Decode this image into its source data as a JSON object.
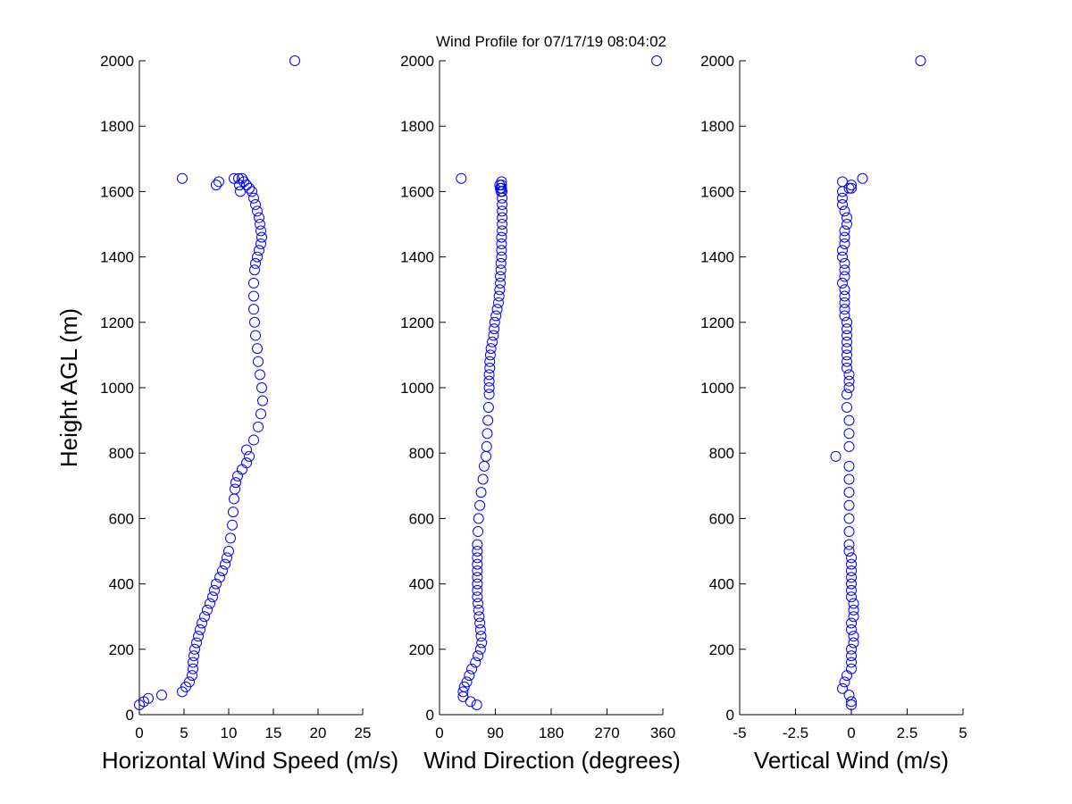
{
  "title": "Wind Profile for  07/17/19 08:04:02",
  "ylabel": "Height AGL (m)",
  "colors": {
    "marker": "#0000ff",
    "axis": "#000000",
    "background": "#ffffff"
  },
  "chart_data": [
    {
      "type": "scatter",
      "xlabel": "Horizontal Wind Speed (m/s)",
      "xlim": [
        0,
        25
      ],
      "xticks": [
        0,
        5,
        10,
        15,
        20,
        25
      ],
      "xtick_labels": [
        "0",
        "5",
        "10",
        "15",
        "20",
        "25"
      ],
      "ylim": [
        0,
        2000
      ],
      "yticks": [
        0,
        200,
        400,
        600,
        800,
        1000,
        1200,
        1400,
        1600,
        1800,
        2000
      ],
      "ytick_labels": [
        "0",
        "200",
        "400",
        "600",
        "800",
        "1000",
        "1200",
        "1400",
        "1600",
        "1800",
        "2000"
      ],
      "x": [
        0.0,
        0.5,
        1.0,
        2.5,
        4.8,
        5.2,
        5.6,
        5.9,
        6.0,
        6.0,
        6.1,
        6.2,
        6.4,
        6.6,
        6.8,
        7.0,
        7.3,
        7.6,
        7.9,
        8.2,
        8.4,
        8.6,
        9.0,
        9.3,
        9.6,
        9.8,
        10.0,
        10.2,
        10.4,
        10.5,
        10.6,
        10.7,
        10.8,
        11.0,
        11.5,
        12.0,
        12.3,
        12.0,
        12.8,
        13.3,
        13.6,
        13.8,
        13.7,
        13.5,
        13.3,
        13.2,
        13.0,
        12.9,
        12.8,
        12.8,
        12.8,
        12.9,
        13.0,
        13.2,
        13.4,
        13.6,
        13.7,
        13.6,
        13.5,
        13.4,
        13.2,
        13.0,
        12.8,
        12.6,
        12.3,
        12.0,
        11.7,
        11.5,
        11.3,
        11.2,
        11.1,
        10.6,
        4.8,
        8.6,
        8.9,
        17.4
      ],
      "y": [
        30,
        40,
        50,
        60,
        70,
        85,
        100,
        120,
        140,
        160,
        180,
        200,
        220,
        240,
        260,
        280,
        300,
        320,
        340,
        360,
        380,
        400,
        420,
        440,
        460,
        480,
        500,
        540,
        580,
        620,
        660,
        690,
        710,
        730,
        750,
        770,
        790,
        810,
        840,
        880,
        920,
        960,
        1000,
        1040,
        1080,
        1120,
        1160,
        1200,
        1240,
        1280,
        1320,
        1360,
        1380,
        1400,
        1420,
        1440,
        1460,
        1480,
        1500,
        1520,
        1540,
        1560,
        1580,
        1600,
        1610,
        1620,
        1630,
        1640,
        1600,
        1620,
        1640,
        1640,
        1640,
        1620,
        1630,
        2000
      ]
    },
    {
      "type": "scatter",
      "xlabel": "Wind Direction (degrees)",
      "xlim": [
        0,
        360
      ],
      "xticks": [
        0,
        90,
        180,
        270,
        360
      ],
      "xtick_labels": [
        "0",
        "90",
        "180",
        "270",
        "360"
      ],
      "ylim": [
        0,
        2000
      ],
      "yticks": [
        0,
        200,
        400,
        600,
        800,
        1000,
        1200,
        1400,
        1600,
        1800,
        2000
      ],
      "ytick_labels": [
        "0",
        "200",
        "400",
        "600",
        "800",
        "1000",
        "1200",
        "1400",
        "1600",
        "1800",
        "2000"
      ],
      "x": [
        60,
        50,
        38,
        38,
        40,
        44,
        48,
        52,
        58,
        62,
        66,
        68,
        67,
        66,
        65,
        64,
        63,
        62,
        61,
        61,
        61,
        61,
        61,
        61,
        61,
        61,
        61,
        62,
        63,
        65,
        67,
        70,
        72,
        75,
        76,
        77,
        78,
        79,
        80,
        80,
        80,
        80,
        81,
        81,
        82,
        83,
        85,
        87,
        88,
        89,
        91,
        93,
        95,
        96,
        97,
        98,
        98,
        99,
        99,
        100,
        100,
        100,
        100,
        101,
        101,
        101,
        101,
        101,
        101,
        101,
        100,
        100,
        100,
        99,
        98,
        97,
        35,
        350
      ],
      "y": [
        30,
        40,
        55,
        70,
        85,
        100,
        120,
        140,
        160,
        180,
        200,
        220,
        240,
        260,
        280,
        300,
        320,
        340,
        360,
        380,
        400,
        420,
        440,
        460,
        480,
        500,
        520,
        560,
        600,
        640,
        680,
        720,
        760,
        790,
        820,
        860,
        900,
        940,
        980,
        1000,
        1020,
        1040,
        1060,
        1080,
        1100,
        1120,
        1140,
        1160,
        1180,
        1200,
        1220,
        1240,
        1260,
        1280,
        1300,
        1320,
        1340,
        1360,
        1380,
        1400,
        1420,
        1440,
        1460,
        1480,
        1500,
        1520,
        1540,
        1560,
        1580,
        1600,
        1610,
        1620,
        1630,
        1600,
        1610,
        1620,
        1640,
        2000
      ]
    },
    {
      "type": "scatter",
      "xlabel": "Vertical Wind (m/s)",
      "xlim": [
        -5,
        5
      ],
      "xticks": [
        -5,
        -2.5,
        0,
        2.5,
        5
      ],
      "xtick_labels": [
        "-5",
        "-2.5",
        "0",
        "2.5",
        "5"
      ],
      "ylim": [
        0,
        2000
      ],
      "yticks": [
        0,
        200,
        400,
        600,
        800,
        1000,
        1200,
        1400,
        1600,
        1800,
        2000
      ],
      "ytick_labels": [
        "0",
        "200",
        "400",
        "600",
        "800",
        "1000",
        "1200",
        "1400",
        "1600",
        "1800",
        "2000"
      ],
      "x": [
        0.0,
        0.0,
        -0.1,
        -0.4,
        -0.3,
        -0.2,
        0.0,
        0.0,
        0.0,
        0.0,
        0.1,
        0.1,
        0.0,
        0.0,
        0.1,
        0.1,
        0.1,
        0.0,
        0.0,
        0.0,
        0.0,
        0.0,
        0.0,
        0.0,
        -0.1,
        -0.1,
        -0.1,
        -0.1,
        -0.1,
        -0.1,
        -0.1,
        -0.1,
        -0.1,
        -0.1,
        -0.1,
        -0.2,
        -0.2,
        -0.1,
        -0.1,
        -0.1,
        -0.2,
        -0.2,
        -0.2,
        -0.2,
        -0.2,
        -0.2,
        -0.2,
        -0.2,
        -0.3,
        -0.3,
        -0.3,
        -0.3,
        -0.3,
        -0.4,
        -0.3,
        -0.3,
        -0.3,
        -0.4,
        -0.4,
        -0.3,
        -0.3,
        -0.3,
        -0.2,
        -0.2,
        -0.3,
        -0.4,
        -0.4,
        -0.4,
        -0.1,
        0.0,
        -0.4,
        0.5,
        0.0,
        -0.7,
        3.1
      ],
      "y": [
        30,
        40,
        60,
        80,
        100,
        120,
        140,
        160,
        180,
        200,
        220,
        240,
        260,
        280,
        300,
        320,
        340,
        360,
        380,
        400,
        420,
        440,
        460,
        480,
        500,
        520,
        560,
        600,
        640,
        680,
        720,
        760,
        820,
        860,
        900,
        940,
        980,
        1000,
        1020,
        1040,
        1060,
        1080,
        1100,
        1120,
        1140,
        1160,
        1180,
        1200,
        1220,
        1240,
        1260,
        1280,
        1300,
        1320,
        1340,
        1360,
        1380,
        1400,
        1420,
        1440,
        1460,
        1480,
        1500,
        1520,
        1540,
        1560,
        1580,
        1600,
        1610,
        1620,
        1630,
        1640,
        1610,
        790,
        2000
      ]
    }
  ]
}
